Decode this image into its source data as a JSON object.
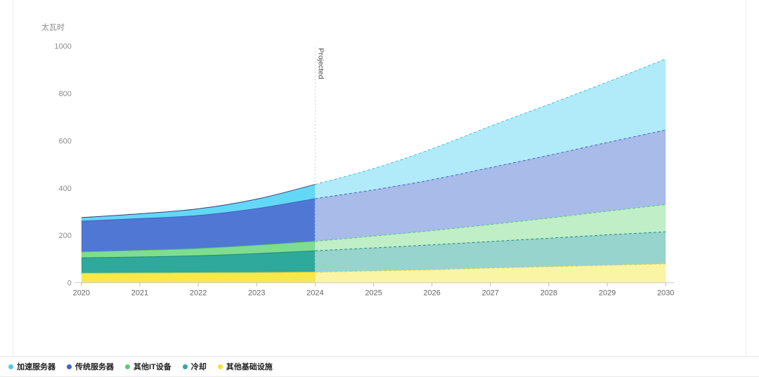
{
  "chart_data": {
    "type": "area",
    "variant": "stacked-area-with-projection",
    "unit_label": "太瓦时",
    "projected_label": "Projected",
    "projection_start_year": 2024,
    "x": [
      2020,
      2021,
      2022,
      2023,
      2024,
      2025,
      2026,
      2027,
      2028,
      2029,
      2030
    ],
    "ylim": [
      0,
      1000
    ],
    "yticks": [
      0,
      200,
      400,
      600,
      800,
      1000
    ],
    "grid": "off",
    "legend_position": "bottom",
    "series": [
      {
        "name": "其他基础设施",
        "key": "other-infrastructure",
        "color": "#f6e94b",
        "stroke": "#d9c93a",
        "values": [
          40,
          41,
          42,
          43,
          45,
          50,
          55,
          62,
          68,
          74,
          80
        ]
      },
      {
        "name": "冷却",
        "key": "cooling",
        "color": "#2fa99b",
        "stroke": "#23897e",
        "values": [
          65,
          68,
          72,
          80,
          90,
          97,
          105,
          112,
          120,
          128,
          135
        ]
      },
      {
        "name": "其他IT设备",
        "key": "other-it-equipment",
        "color": "#7fdd90",
        "stroke": "#57c671",
        "values": [
          25,
          27,
          30,
          35,
          40,
          50,
          60,
          72,
          85,
          100,
          115
        ]
      },
      {
        "name": "传统服务器",
        "key": "conventional-servers",
        "color": "#5177d4",
        "stroke": "#3e63c4",
        "values": [
          130,
          135,
          140,
          155,
          180,
          195,
          215,
          240,
          265,
          290,
          315
        ]
      },
      {
        "name": "加速服务器",
        "key": "accelerated-servers",
        "color": "#63d8f6",
        "stroke": "#3fbfe6",
        "stroke_hist": "#2e4080",
        "values": [
          15,
          20,
          28,
          40,
          60,
          90,
          130,
          175,
          215,
          255,
          300
        ]
      }
    ]
  },
  "legend": {
    "items": [
      {
        "label": "加速服务器",
        "color": "#4ec9ee"
      },
      {
        "label": "传统服务器",
        "color": "#3f63c8"
      },
      {
        "label": "其他IT设备",
        "color": "#5ec974"
      },
      {
        "label": "冷却",
        "color": "#2fa99b"
      },
      {
        "label": "其他基础设施",
        "color": "#f2e23c"
      }
    ]
  },
  "colors": {
    "axis_line": "#cccccc",
    "tick": "#bbbbbb",
    "y_label": "#8a8a8a",
    "x_label": "#666666",
    "unit_label": "#888888",
    "projection_line": "#cfcfcf",
    "projected_text": "#444444"
  }
}
